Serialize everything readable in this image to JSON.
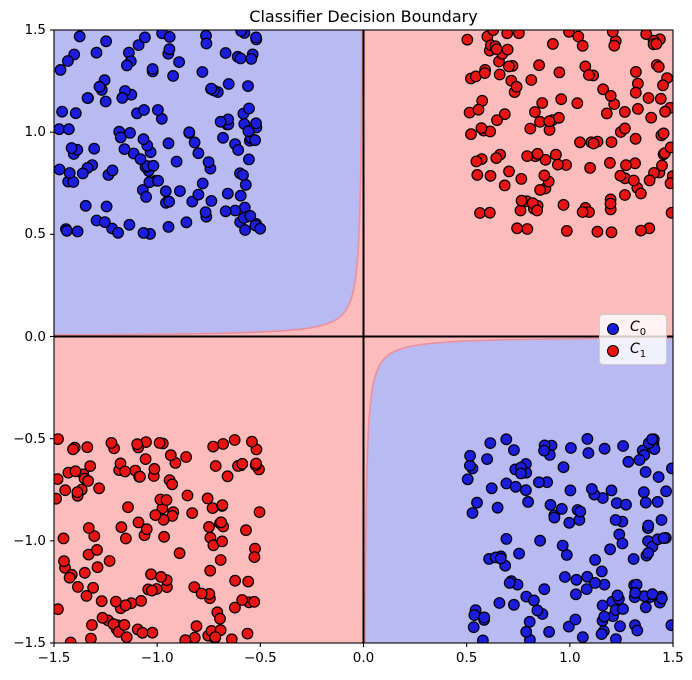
{
  "figure": {
    "background": "#ffffff"
  },
  "chart_data": {
    "type": "scatter",
    "title": "Classifier Decision Boundary",
    "xlabel": "",
    "ylabel": "",
    "xlim": [
      -1.5,
      1.5
    ],
    "ylim": [
      -1.5,
      1.5
    ],
    "grid": false,
    "x_ticks": {
      "values": [
        -1.5,
        -1.0,
        -0.5,
        0.0,
        0.5,
        1.0,
        1.5
      ],
      "labels": [
        "−1.5",
        "−1.0",
        "−0.5",
        "0.0",
        "0.5",
        "1.0",
        "1.5"
      ]
    },
    "y_ticks": {
      "values": [
        -1.5,
        -1.0,
        -0.5,
        0.0,
        0.5,
        1.0,
        1.5
      ],
      "labels": [
        "−1.5",
        "−1.0",
        "−0.5",
        "0.0",
        "0.5",
        "1.0",
        "1.5"
      ]
    },
    "axis_lines": {
      "description": "black horizontal line at y=0 and vertical line at x=0",
      "color": "#000000",
      "width": 2
    },
    "decision_regions": {
      "description": "XOR classifier regions: quadrants II and IV predicted class C0 (blue), quadrants I and III predicted class C1 (pink); boundary is hyperbola-like curve x*y = -c hugging the axes",
      "c": 0.011,
      "class0_region_color": "#babaf3",
      "class1_region_color": "#fdbcbc",
      "boundary_edge_color": "#e892a0"
    },
    "series": [
      {
        "name": "C0",
        "legend_text": "C",
        "legend_sub": "0",
        "marker": "circle",
        "marker_color": "#1c1cdc",
        "marker_edge_color": "#000000",
        "marker_radius_px": 5.3,
        "clusters": [
          {
            "quadrant": "top-left",
            "x_range": [
              -1.5,
              -0.5
            ],
            "y_range": [
              0.5,
              1.5
            ],
            "count": 150,
            "distribution": "uniform"
          },
          {
            "quadrant": "bottom-right",
            "x_range": [
              0.5,
              1.5
            ],
            "y_range": [
              -1.5,
              -0.5
            ],
            "count": 150,
            "distribution": "uniform"
          }
        ]
      },
      {
        "name": "C1",
        "legend_text": "C",
        "legend_sub": "1",
        "marker": "circle",
        "marker_color": "#e81414",
        "marker_edge_color": "#000000",
        "marker_radius_px": 5.3,
        "clusters": [
          {
            "quadrant": "top-right",
            "x_range": [
              0.5,
              1.5
            ],
            "y_range": [
              0.5,
              1.5
            ],
            "count": 150,
            "distribution": "uniform"
          },
          {
            "quadrant": "bottom-left",
            "x_range": [
              -1.5,
              -0.5
            ],
            "y_range": [
              -1.5,
              -0.5
            ],
            "count": 150,
            "distribution": "uniform"
          }
        ]
      }
    ],
    "legend": {
      "position": "center right",
      "items": [
        {
          "text": "C",
          "sub": "0",
          "marker_color": "#1c1cdc"
        },
        {
          "text": "C",
          "sub": "1",
          "marker_color": "#e81414"
        }
      ]
    }
  }
}
